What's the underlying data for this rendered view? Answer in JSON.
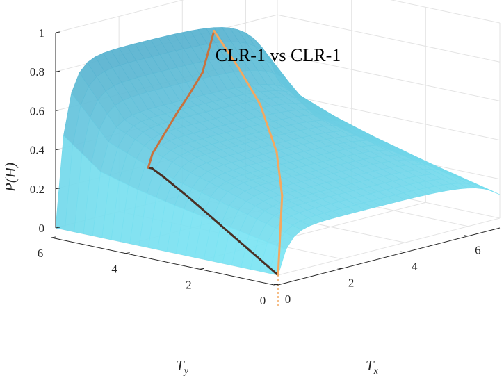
{
  "chart_data": {
    "type": "surface",
    "title": "CLR-1 vs CLR-1",
    "xlabel": "T_x",
    "ylabel": "T_y",
    "zlabel": "P(H)",
    "xlim": [
      0,
      7
    ],
    "ylim": [
      0,
      6
    ],
    "zlim": [
      0,
      1
    ],
    "x_ticks": [
      "0",
      "2",
      "4",
      "6"
    ],
    "y_ticks": [
      "0",
      "2",
      "4",
      "6"
    ],
    "z_ticks": [
      "0",
      "0.2",
      "0.4",
      "0.6",
      "0.8",
      "1"
    ],
    "grid": true,
    "colors": {
      "surface": "#7fe9f7",
      "surface_dark": "#5fb6cc",
      "curve_dark": "#4a3024",
      "curve_mid": "#c8723e",
      "curve_light": "#f4a860"
    },
    "surface_ridge": [
      {
        "t": 0.0,
        "p": 0.22
      },
      {
        "t": 1.0,
        "p": 0.28
      },
      {
        "t": 2.0,
        "p": 0.34
      },
      {
        "t": 3.0,
        "p": 0.4
      },
      {
        "t": 4.0,
        "p": 0.47
      },
      {
        "t": 5.0,
        "p": 0.56
      },
      {
        "t": 6.0,
        "p": 0.82
      }
    ],
    "series": [
      {
        "points": [
          {
            "x": 0,
            "y": 0,
            "z": 0.0
          },
          {
            "x": 0,
            "y": 0.8,
            "z": 0.1
          },
          {
            "x": 0,
            "y": 1.6,
            "z": 0.2
          },
          {
            "x": 0,
            "y": 2.4,
            "z": 0.3
          },
          {
            "x": 0,
            "y": 3.1,
            "z": 0.38
          },
          {
            "x": 0,
            "y": 3.4,
            "z": 0.41
          },
          {
            "x": 0,
            "y": 3.5,
            "z": 0.41
          }
        ]
      },
      {
        "points": [
          {
            "x": 0.0,
            "y": 3.5,
            "z": 0.41
          },
          {
            "x": 0.6,
            "y": 3.9,
            "z": 0.44
          },
          {
            "x": 1.4,
            "y": 4.3,
            "z": 0.48
          },
          {
            "x": 2.4,
            "y": 4.8,
            "z": 0.53
          },
          {
            "x": 3.4,
            "y": 5.3,
            "z": 0.57
          },
          {
            "x": 4.4,
            "y": 5.8,
            "z": 0.62
          },
          {
            "x": 5.0,
            "y": 6.0,
            "z": 0.8
          }
        ]
      },
      {
        "points": [
          {
            "x": 0,
            "y": 0,
            "z": 0.0
          },
          {
            "x": 1.0,
            "y": 0.8,
            "z": 0.13
          },
          {
            "x": 2.0,
            "y": 1.6,
            "z": 0.26
          },
          {
            "x": 3.0,
            "y": 2.6,
            "z": 0.4
          },
          {
            "x": 4.0,
            "y": 3.9,
            "z": 0.55
          },
          {
            "x": 4.6,
            "y": 5.0,
            "z": 0.67
          },
          {
            "x": 5.0,
            "y": 6.0,
            "z": 0.8
          }
        ]
      }
    ]
  }
}
